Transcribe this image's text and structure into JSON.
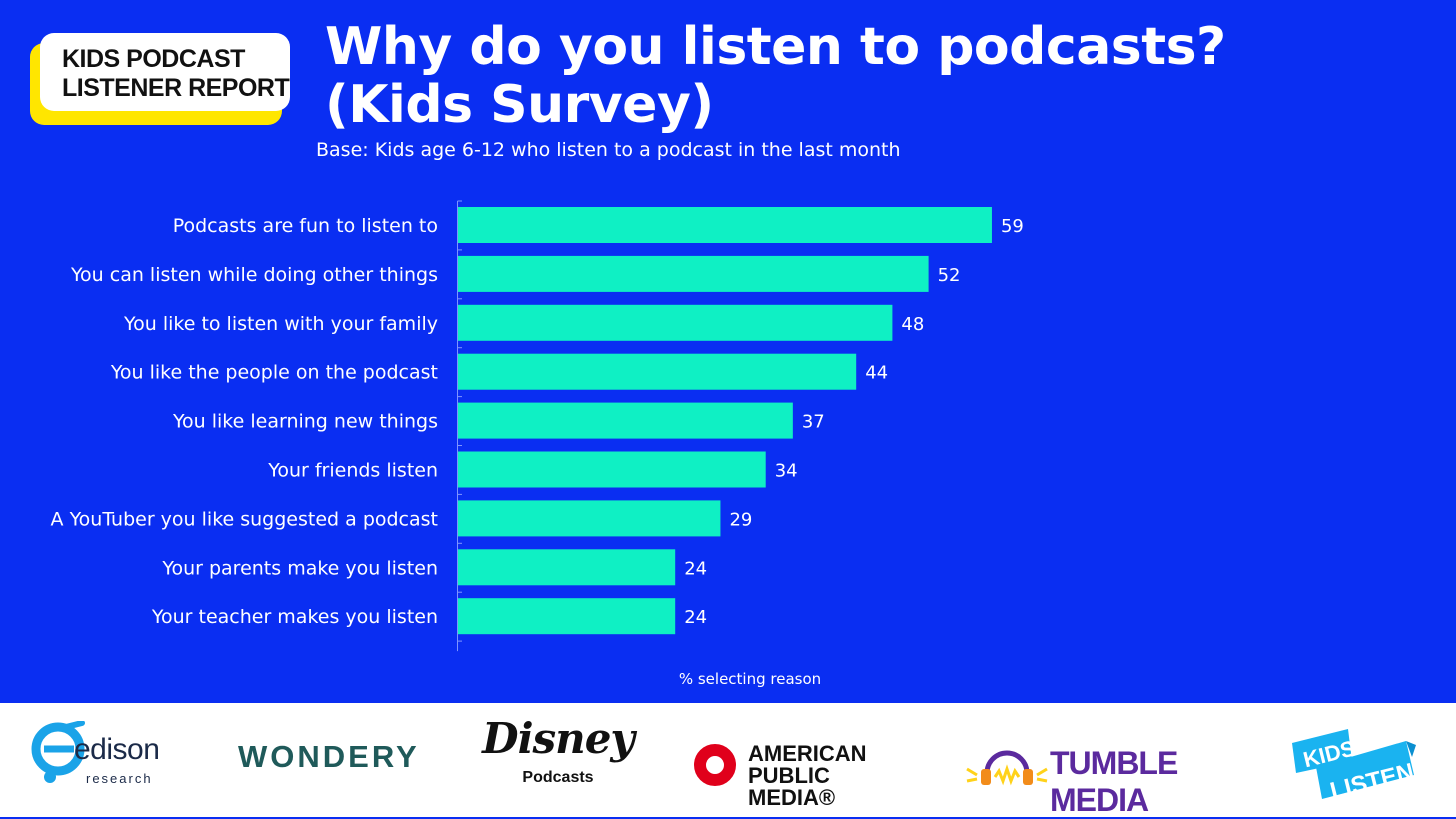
{
  "badge": {
    "line1": "KIDS PODCAST",
    "line2": "LISTENER REPORT"
  },
  "title": {
    "line1": "Why do you listen to podcasts?",
    "line2": "(Kids Survey)"
  },
  "subtitle": "Base: Kids age 6-12 who listen to a podcast in the last month",
  "colors": {
    "background": "#0a2ef2",
    "bar": "#0ff0c4",
    "badge_accent": "#ffe600"
  },
  "chart_data": {
    "type": "bar",
    "orientation": "horizontal",
    "categories": [
      "Podcasts are fun to listen to",
      "You can listen while doing other things",
      "You like to listen with your family",
      "You like the people on the podcast",
      "You like learning new things",
      "Your friends listen",
      "A YouTuber you like suggested a podcast",
      "Your parents make you listen",
      "Your teacher makes you listen"
    ],
    "values": [
      59,
      52,
      48,
      44,
      37,
      34,
      29,
      24,
      24
    ],
    "xlabel": "% selecting reason",
    "xlim": [
      0,
      100
    ],
    "grid": false
  },
  "footer": {
    "logos": [
      {
        "name": "edison-research",
        "text": "edison",
        "subtext": "research"
      },
      {
        "name": "wondery",
        "text": "WONDERY"
      },
      {
        "name": "disney-podcasts",
        "text": "Disney",
        "subtext": "Podcasts"
      },
      {
        "name": "american-public-media",
        "line1": "AMERICAN",
        "line2": "PUBLIC MEDIA®"
      },
      {
        "name": "tumble-media",
        "text": "TUMBLE MEDIA"
      },
      {
        "name": "kids-listen",
        "line1": "KIDS",
        "line2": "LISTEN"
      }
    ]
  }
}
